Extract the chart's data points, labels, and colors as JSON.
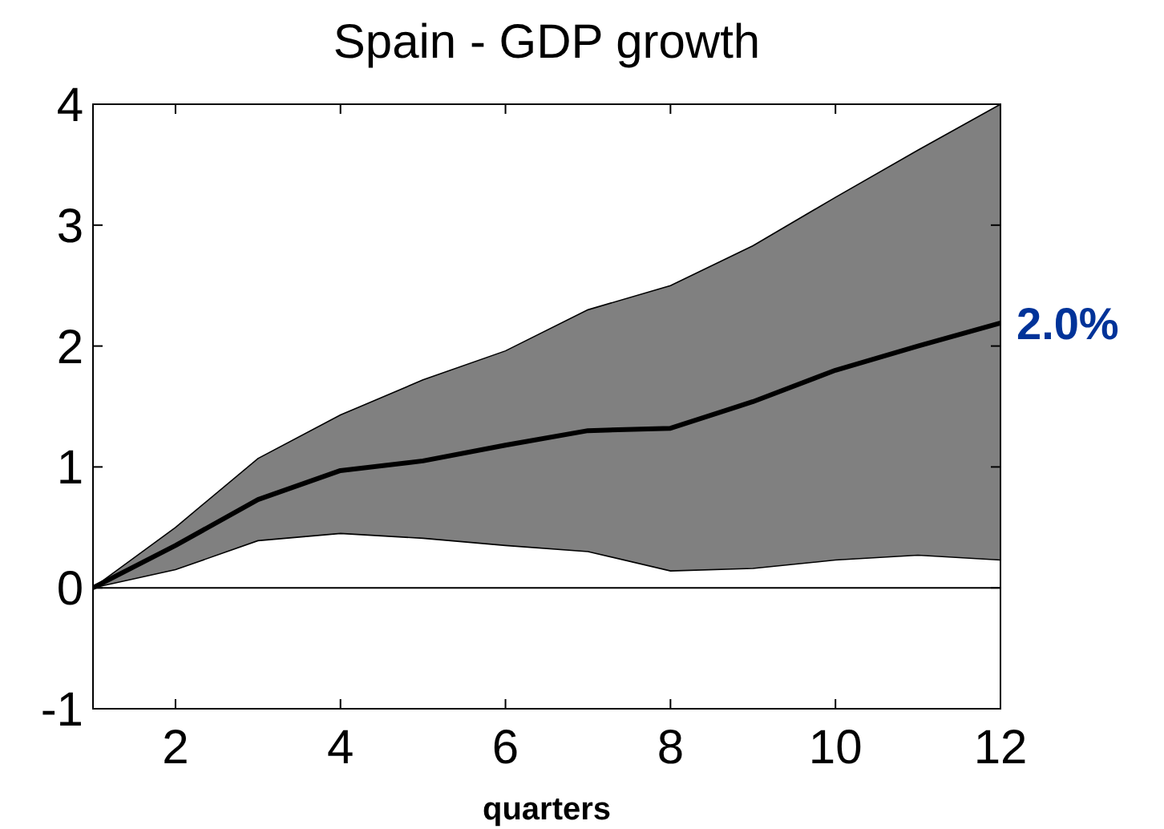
{
  "chart_data": {
    "type": "line",
    "title": "Spain - GDP growth",
    "xlabel": "quarters",
    "x": [
      1,
      2,
      3,
      4,
      5,
      6,
      7,
      8,
      9,
      10,
      11,
      12
    ],
    "series": [
      {
        "color": "#000000",
        "values": [
          0,
          0.35,
          0.73,
          0.97,
          1.05,
          1.18,
          1.3,
          1.32,
          1.54,
          1.8,
          2.0,
          2.19
        ],
        "lower": [
          0,
          0.15,
          0.39,
          0.45,
          0.41,
          0.35,
          0.3,
          0.14,
          0.16,
          0.23,
          0.27,
          0.23
        ],
        "upper": [
          0,
          0.5,
          1.07,
          1.43,
          1.72,
          1.96,
          2.3,
          2.5,
          2.83,
          3.23,
          3.62,
          4.0
        ]
      }
    ],
    "xlim": [
      1,
      12
    ],
    "xticks": [
      2,
      4,
      6,
      8,
      10,
      12
    ],
    "ylim": [
      -1,
      4
    ],
    "yticks": [
      -1,
      0,
      1,
      2,
      3,
      4
    ],
    "ref_lines": [
      {
        "axis": "y",
        "value": 0,
        "color": "#000000"
      }
    ],
    "annotations": [
      "2.0%"
    ],
    "grid": false,
    "line_style": "solid"
  }
}
